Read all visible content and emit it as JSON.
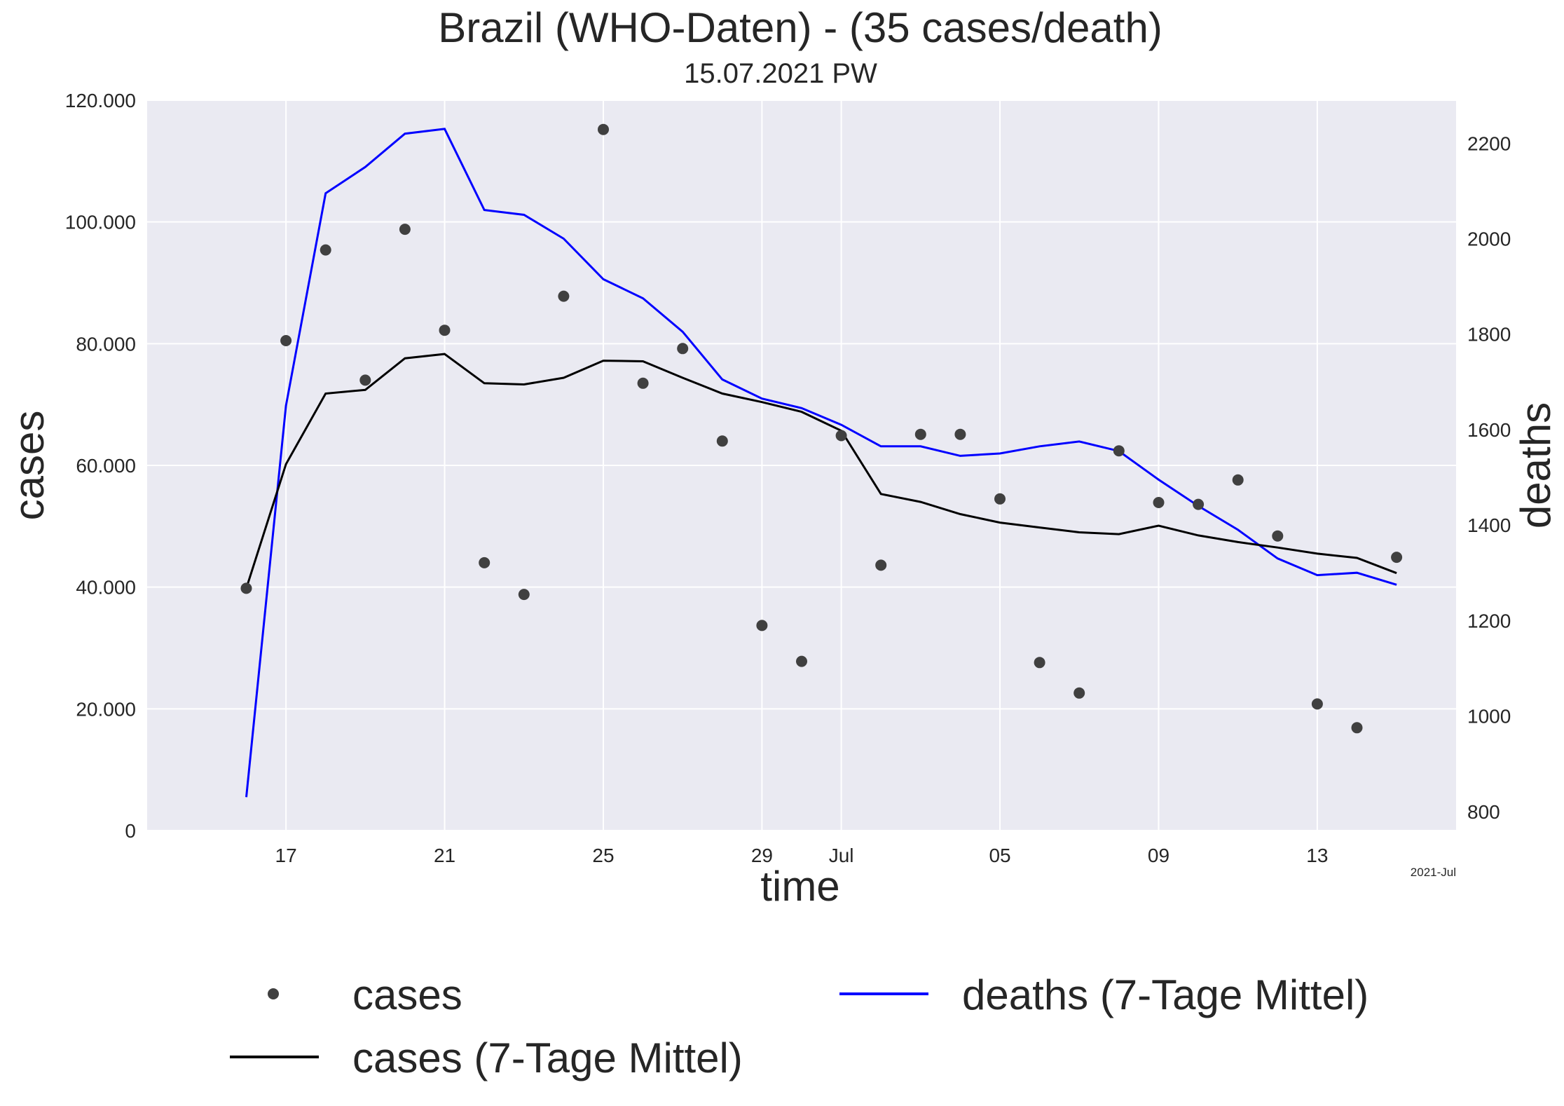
{
  "chart_data": {
    "type": "line",
    "title": "Brazil (WHO-Daten) - (35 cases/death)",
    "subtitle": "15.07.2021 PW",
    "xlabel": "time",
    "ylabel": "cases",
    "y2label": "deaths",
    "x_offset_label": "2021-Jul",
    "grid": true,
    "legend_position": "bottom",
    "colors": {
      "cases": "#404040",
      "cases_avg": "#000000",
      "deaths_avg": "#0000ff",
      "deaths_axis_label": "#0000ff",
      "plot_bg": "#eaeaf2",
      "grid": "#ffffff"
    },
    "x_dates": [
      "2021-06-16",
      "2021-06-17",
      "2021-06-18",
      "2021-06-19",
      "2021-06-20",
      "2021-06-21",
      "2021-06-22",
      "2021-06-23",
      "2021-06-24",
      "2021-06-25",
      "2021-06-26",
      "2021-06-27",
      "2021-06-28",
      "2021-06-29",
      "2021-06-30",
      "2021-07-01",
      "2021-07-02",
      "2021-07-03",
      "2021-07-04",
      "2021-07-05",
      "2021-07-06",
      "2021-07-07",
      "2021-07-08",
      "2021-07-09",
      "2021-07-10",
      "2021-07-11",
      "2021-07-12",
      "2021-07-13",
      "2021-07-14",
      "2021-07-15"
    ],
    "x_ticks": [
      {
        "date": "2021-06-17",
        "label": "17"
      },
      {
        "date": "2021-06-21",
        "label": "21"
      },
      {
        "date": "2021-06-25",
        "label": "25"
      },
      {
        "date": "2021-06-29",
        "label": "29"
      },
      {
        "date": "2021-07-01",
        "label": "Jul"
      },
      {
        "date": "2021-07-05",
        "label": "05"
      },
      {
        "date": "2021-07-09",
        "label": "09"
      },
      {
        "date": "2021-07-13",
        "label": "13"
      }
    ],
    "x_range": [
      "2021-06-13T12:00",
      "2021-07-16T12:00"
    ],
    "ylim": [
      0,
      120000
    ],
    "y_ticks": [
      {
        "value": 0,
        "label": "0"
      },
      {
        "value": 20000,
        "label": "20.000"
      },
      {
        "value": 40000,
        "label": "40.000"
      },
      {
        "value": 60000,
        "label": "60.000"
      },
      {
        "value": 80000,
        "label": "80.000"
      },
      {
        "value": 100000,
        "label": "100.000"
      },
      {
        "value": 120000,
        "label": "120.000"
      }
    ],
    "y2lim": [
      760,
      2290
    ],
    "y2_ticks": [
      {
        "value": 800,
        "label": "800"
      },
      {
        "value": 1000,
        "label": "1000"
      },
      {
        "value": 1200,
        "label": "1200"
      },
      {
        "value": 1400,
        "label": "1400"
      },
      {
        "value": 1600,
        "label": "1600"
      },
      {
        "value": 1800,
        "label": "1800"
      },
      {
        "value": 2000,
        "label": "2000"
      },
      {
        "value": 2200,
        "label": "2200"
      }
    ],
    "series": [
      {
        "name": "cases",
        "kind": "scatter",
        "axis": "left",
        "values": [
          39800,
          80500,
          95400,
          74000,
          98800,
          82200,
          44000,
          38800,
          87800,
          115200,
          73500,
          79200,
          64000,
          33700,
          27800,
          64900,
          43600,
          65100,
          65100,
          54500,
          27600,
          22600,
          62400,
          53900,
          53600,
          57600,
          48400,
          20800,
          16900,
          44900
        ]
      },
      {
        "name": "cases (7-Tage Mittel)",
        "kind": "line",
        "axis": "left",
        "values": [
          39800,
          60200,
          71800,
          72400,
          77600,
          78300,
          73500,
          73300,
          74400,
          77200,
          77100,
          74400,
          71800,
          70400,
          68800,
          65700,
          55300,
          54000,
          52000,
          50600,
          49800,
          49000,
          48700,
          50100,
          48500,
          47400,
          46500,
          45500,
          44800,
          42300
        ]
      },
      {
        "name": "deaths (7-Tage Mittel)",
        "kind": "line",
        "axis": "right",
        "values": [
          830,
          1650,
          2095,
          2150,
          2220,
          2230,
          2060,
          2050,
          2000,
          1915,
          1875,
          1805,
          1705,
          1665,
          1645,
          1610,
          1565,
          1565,
          1545,
          1550,
          1565,
          1575,
          1555,
          1495,
          1440,
          1390,
          1330,
          1295,
          1300,
          1275
        ]
      }
    ]
  }
}
